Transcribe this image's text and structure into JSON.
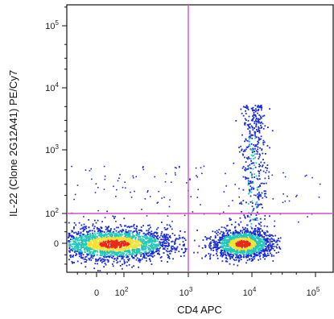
{
  "chart_data": {
    "type": "scatter",
    "subtype": "flow-cytometry-density-dot-plot",
    "xlabel": "CD4 APC",
    "ylabel": "IL-22 (Clone 2G12A41) PE/Cy7",
    "x_scale": "biexponential",
    "y_scale": "biexponential",
    "x_tick_labels": [
      "0",
      "10^2",
      "10^3",
      "10^4",
      "10^5"
    ],
    "x_ticks": [
      0,
      100,
      1000,
      10000,
      100000
    ],
    "y_tick_labels": [
      "0",
      "10^2",
      "10^3",
      "10^4",
      "10^5"
    ],
    "y_ticks": [
      0,
      100,
      1000,
      10000,
      100000
    ],
    "quadrant_gate": {
      "x": 1000,
      "y": 100
    },
    "populations": [
      {
        "name": "CD4-negative IL-22-negative",
        "x_center": 40,
        "y_center": 0,
        "density": "high"
      },
      {
        "name": "CD4-positive IL-22-negative",
        "x_center": 7000,
        "y_center": 0,
        "density": "high"
      },
      {
        "name": "CD4-positive IL-22-positive",
        "x_center": 9000,
        "y_center": 1000,
        "density": "low"
      }
    ],
    "grid": false,
    "legend": "none"
  },
  "colors": {
    "gate_line": "#d64fc8",
    "density_low": "#1a2bd6",
    "density_mid": "#22c7b8",
    "density_high_mid": "#f2e233",
    "density_high": "#e8281e"
  }
}
